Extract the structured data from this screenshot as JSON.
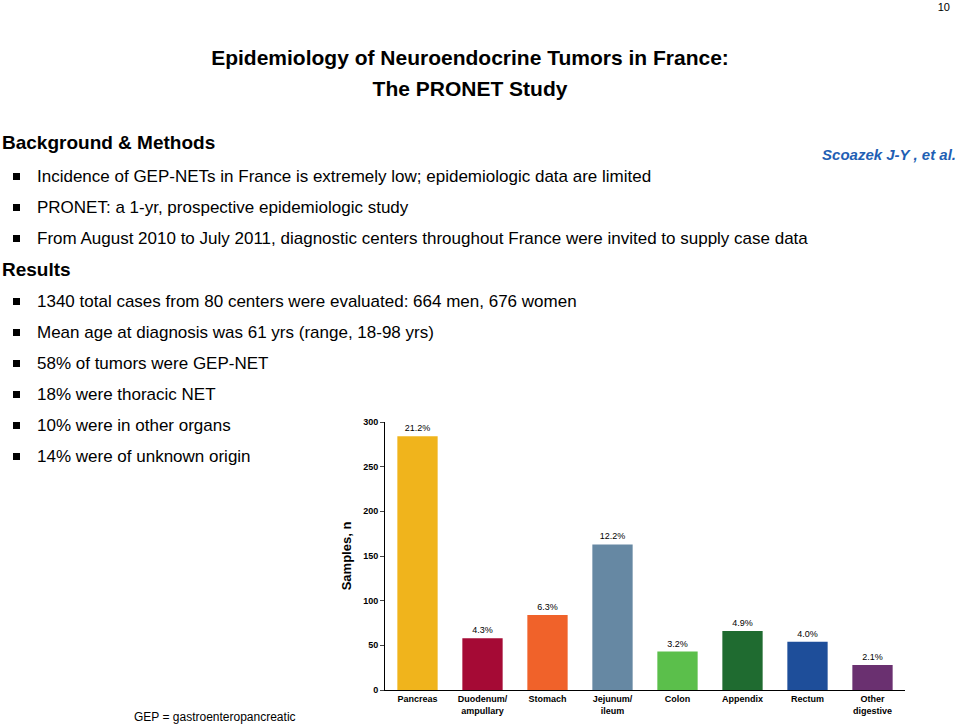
{
  "page_number": "10",
  "title": [
    "Epidemiology of Neuroendocrine Tumors in France:",
    "The PRONET Study"
  ],
  "citation": "Scoazek J-Y , et al.",
  "sections": [
    {
      "heading": "Background & Methods",
      "bullets": [
        "Incidence of GEP-NETs in France is extremely low; epidemiologic data are limited",
        "PRONET: a 1-yr, prospective epidemiologic study",
        "From August 2010 to July 2011, diagnostic centers throughout France were invited to supply case data"
      ]
    },
    {
      "heading": "Results",
      "bullets": [
        "1340 total cases from 80 centers were evaluated: 664 men, 676 women",
        "Mean age at diagnosis was 61 yrs (range, 18-98 yrs)",
        "58% of tumors were GEP-NET",
        "18% were thoracic NET",
        "10% were in other organs",
        "14% were of unknown origin"
      ]
    }
  ],
  "footnote": "GEP = gastroenteropancreatic",
  "chart_data": {
    "type": "bar",
    "y_label": "Samples, n",
    "categories": [
      "Pancreas",
      "Duodenum/ampullary",
      "Stomach",
      "Jejunum/ileum",
      "Colon",
      "Appendix",
      "Rectum",
      "Other digestive"
    ],
    "values": [
      284,
      58,
      84,
      163,
      43,
      66,
      54,
      28
    ],
    "percent_labels": [
      "21.2%",
      "4.3%",
      "6.3%",
      "12.2%",
      "3.2%",
      "4.9%",
      "4.0%",
      "2.1%"
    ],
    "colors": [
      "#f0b41c",
      "#a50a35",
      "#f0622a",
      "#6688a3",
      "#5bbf4b",
      "#1f6b30",
      "#1e4e9a",
      "#6a3070"
    ],
    "ylim": [
      0,
      300
    ],
    "yticks": [
      0,
      50,
      100,
      150,
      200,
      250,
      300
    ],
    "grid": false
  }
}
